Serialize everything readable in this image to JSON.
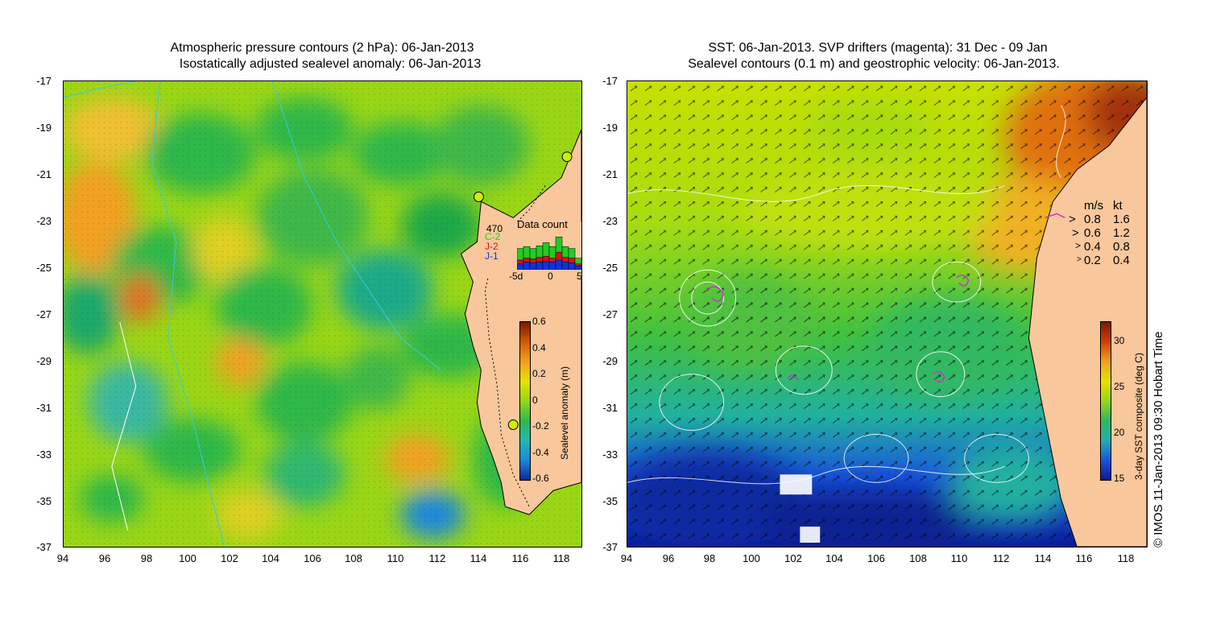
{
  "left_panel": {
    "title_line1": "Atmospheric pressure contours (2 hPa): 06-Jan-2013",
    "title_line2": "Isostatically adjusted sealevel anomaly: 06-Jan-2013",
    "data_count": {
      "title": "Data count",
      "max_label": "470",
      "satellites": [
        "C-2",
        "J-2",
        "J-1"
      ],
      "satellite_colors": [
        "#22cc22",
        "#dd1111",
        "#1133dd"
      ],
      "x_ticks": [
        "-5d",
        "0",
        "5"
      ],
      "bars": [
        {
          "c2": 0.55,
          "j2": 0.25,
          "j1": 0.15
        },
        {
          "c2": 0.6,
          "j2": 0.3,
          "j1": 0.2
        },
        {
          "c2": 0.55,
          "j2": 0.28,
          "j1": 0.18
        },
        {
          "c2": 0.62,
          "j2": 0.32,
          "j1": 0.2
        },
        {
          "c2": 0.7,
          "j2": 0.35,
          "j1": 0.22
        },
        {
          "c2": 0.6,
          "j2": 0.3,
          "j1": 0.2
        },
        {
          "c2": 0.85,
          "j2": 0.45,
          "j1": 0.25
        },
        {
          "c2": 0.6,
          "j2": 0.32,
          "j1": 0.2
        },
        {
          "c2": 0.55,
          "j2": 0.3,
          "j1": 0.18
        },
        {
          "c2": 0.3,
          "j2": 0.15,
          "j1": 0.1
        }
      ]
    },
    "colorbar": {
      "label": "Sealevel anomaly (m)",
      "ticks": [
        "0.6",
        "0.4",
        "0.2",
        "0",
        "-0.2",
        "-0.4",
        "-0.6"
      ]
    }
  },
  "right_panel": {
    "title_line1": "SST: 06-Jan-2013. SVP drifters (magenta): 31 Dec - 09 Jan",
    "title_line2": "Sealevel contours (0.1 m) and geostrophic velocity: 06-Jan-2013.",
    "velocity_legend": {
      "header_ms": "m/s",
      "header_kt": "kt",
      "rows": [
        {
          "ms": "0.8",
          "kt": "1.6"
        },
        {
          "ms": "0.6",
          "kt": "1.2"
        },
        {
          "ms": "0.4",
          "kt": "0.8"
        },
        {
          "ms": "0.2",
          "kt": "0.4"
        }
      ]
    },
    "colorbar": {
      "label": "3-day SST composite (deg C)",
      "ticks": [
        "30",
        "25",
        "20",
        "15"
      ]
    }
  },
  "axes": {
    "y_ticks": [
      "-17",
      "-19",
      "-21",
      "-23",
      "-25",
      "-27",
      "-29",
      "-31",
      "-33",
      "-35",
      "-37"
    ],
    "x_ticks": [
      "94",
      "96",
      "98",
      "100",
      "102",
      "104",
      "106",
      "108",
      "110",
      "112",
      "114",
      "116",
      "118"
    ]
  },
  "footer": {
    "credit": "© IMOS 11-Jan-2013 09:30 Hobart Time"
  },
  "colors": {
    "land": "#f9c79c",
    "sla_green": "#2fb84a",
    "sla_yellow": "#c8e800",
    "sla_orange": "#f2a020",
    "sst_yellow": "#c8e800",
    "sst_blue": "#1a55dd",
    "sst_dark_blue": "#0a1a9a",
    "sst_orange": "#e8901a"
  }
}
